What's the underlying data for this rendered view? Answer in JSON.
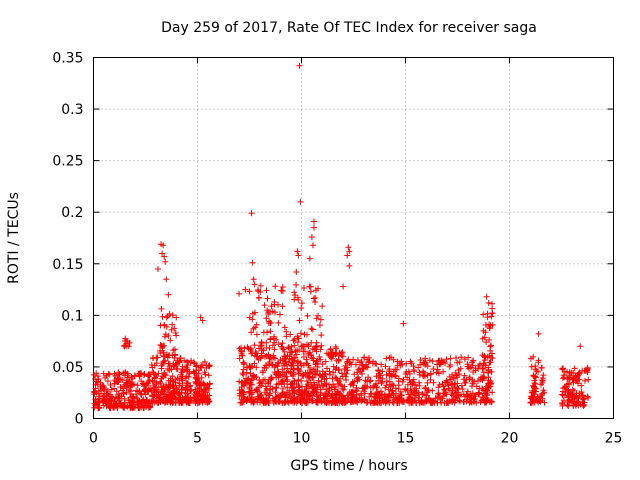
{
  "chart_data": {
    "type": "scatter",
    "title": "Day 259 of 2017, Rate Of TEC Index for receiver saga",
    "xlabel": "GPS time / hours",
    "ylabel": "ROTI / TECUs",
    "xlim": [
      0,
      25
    ],
    "ylim": [
      0,
      0.35
    ],
    "x_ticks": [
      "0",
      "5",
      "10",
      "15",
      "20",
      "25"
    ],
    "y_ticks": [
      "0",
      "0.05",
      "0.1",
      "0.15",
      "0.2",
      "0.25",
      "0.3",
      "0.35"
    ],
    "grid": true,
    "marker": "+",
    "color": "#ff0000",
    "clusters": [
      {
        "x_start": 0.0,
        "x_end": 2.8,
        "y_min": 0.01,
        "y_max": 0.045,
        "count": 300
      },
      {
        "x_start": 1.45,
        "x_end": 1.75,
        "y_min": 0.07,
        "y_max": 0.08,
        "count": 10
      },
      {
        "x_start": 2.8,
        "x_end": 4.7,
        "y_min": 0.015,
        "y_max": 0.06,
        "count": 260
      },
      {
        "x_start": 3.2,
        "x_end": 4.0,
        "y_min": 0.06,
        "y_max": 0.11,
        "count": 40
      },
      {
        "x_start": 4.8,
        "x_end": 5.6,
        "y_min": 0.015,
        "y_max": 0.055,
        "count": 110
      },
      {
        "x_start": 7.0,
        "x_end": 12.0,
        "y_min": 0.015,
        "y_max": 0.07,
        "count": 650
      },
      {
        "x_start": 7.5,
        "x_end": 11.0,
        "y_min": 0.07,
        "y_max": 0.13,
        "count": 110
      },
      {
        "x_start": 12.0,
        "x_end": 19.2,
        "y_min": 0.015,
        "y_max": 0.06,
        "count": 620
      },
      {
        "x_start": 18.7,
        "x_end": 19.2,
        "y_min": 0.06,
        "y_max": 0.115,
        "count": 30
      },
      {
        "x_start": 21.0,
        "x_end": 21.7,
        "y_min": 0.015,
        "y_max": 0.06,
        "count": 70
      },
      {
        "x_start": 22.5,
        "x_end": 23.8,
        "y_min": 0.012,
        "y_max": 0.05,
        "count": 120
      }
    ],
    "points": [
      {
        "x": 9.9,
        "y": 0.342
      },
      {
        "x": 9.95,
        "y": 0.21
      },
      {
        "x": 7.6,
        "y": 0.199
      },
      {
        "x": 10.6,
        "y": 0.191
      },
      {
        "x": 10.6,
        "y": 0.185
      },
      {
        "x": 10.5,
        "y": 0.176
      },
      {
        "x": 10.55,
        "y": 0.168
      },
      {
        "x": 3.25,
        "y": 0.169
      },
      {
        "x": 3.35,
        "y": 0.168
      },
      {
        "x": 3.3,
        "y": 0.16
      },
      {
        "x": 3.4,
        "y": 0.157
      },
      {
        "x": 3.45,
        "y": 0.152
      },
      {
        "x": 3.1,
        "y": 0.145
      },
      {
        "x": 12.25,
        "y": 0.166
      },
      {
        "x": 12.3,
        "y": 0.162
      },
      {
        "x": 12.2,
        "y": 0.158
      },
      {
        "x": 12.3,
        "y": 0.148
      },
      {
        "x": 10.4,
        "y": 0.155
      },
      {
        "x": 9.8,
        "y": 0.162
      },
      {
        "x": 9.85,
        "y": 0.158
      },
      {
        "x": 9.75,
        "y": 0.142
      },
      {
        "x": 7.65,
        "y": 0.151
      },
      {
        "x": 7.7,
        "y": 0.135
      },
      {
        "x": 7.75,
        "y": 0.13
      },
      {
        "x": 12.0,
        "y": 0.128
      },
      {
        "x": 10.45,
        "y": 0.123
      },
      {
        "x": 7.0,
        "y": 0.121
      },
      {
        "x": 7.3,
        "y": 0.125
      },
      {
        "x": 3.5,
        "y": 0.135
      },
      {
        "x": 3.6,
        "y": 0.12
      },
      {
        "x": 18.9,
        "y": 0.118
      },
      {
        "x": 19.0,
        "y": 0.112
      },
      {
        "x": 21.4,
        "y": 0.082
      },
      {
        "x": 23.4,
        "y": 0.07
      },
      {
        "x": 14.9,
        "y": 0.092
      },
      {
        "x": 5.15,
        "y": 0.098
      },
      {
        "x": 5.25,
        "y": 0.095
      }
    ]
  }
}
